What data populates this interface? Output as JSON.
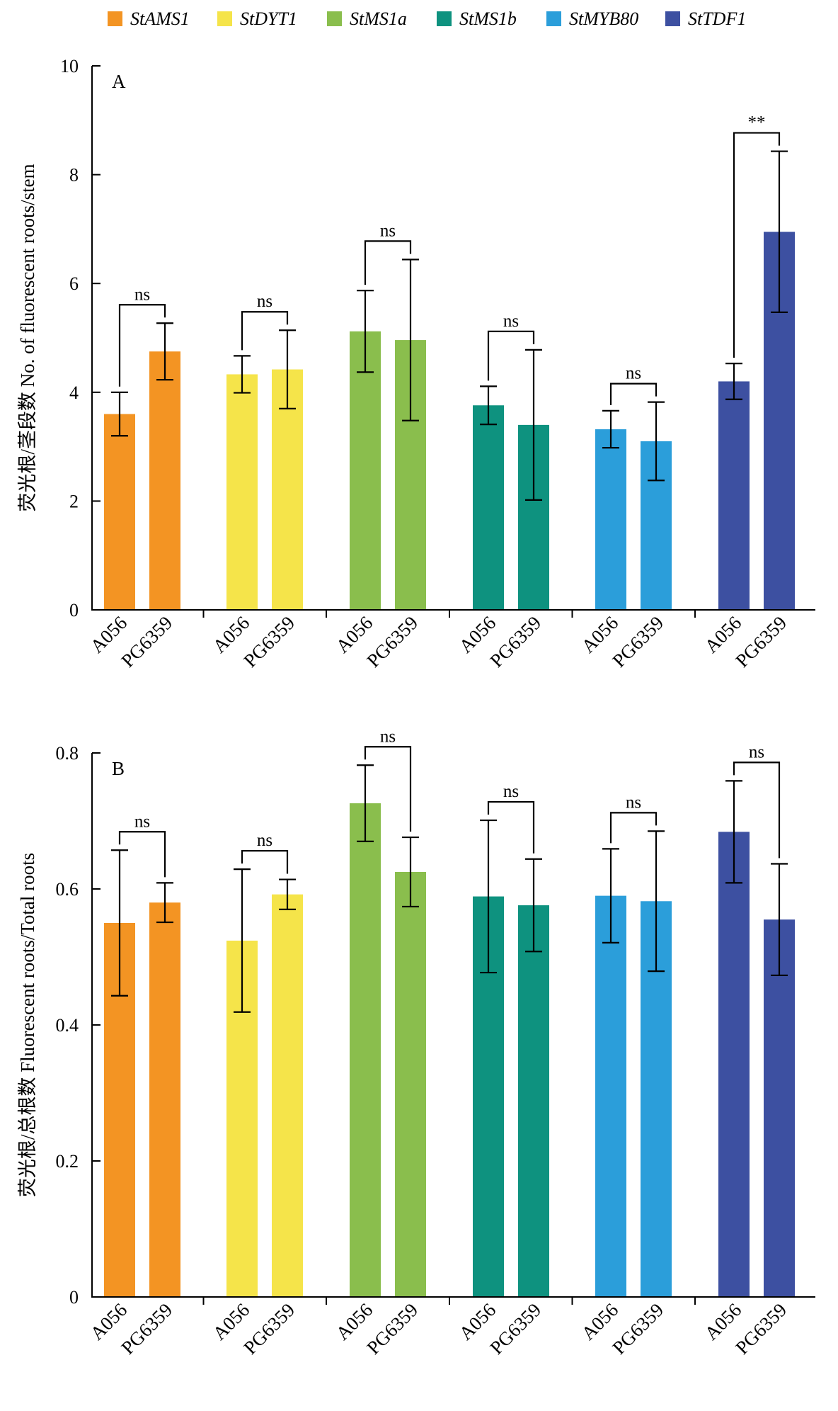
{
  "legend": [
    {
      "name": "StAMS1",
      "color": "#F39423"
    },
    {
      "name": "StDYT1",
      "color": "#F5E44A"
    },
    {
      "name": "StMS1a",
      "color": "#8ABE4D"
    },
    {
      "name": "StMS1b",
      "color": "#0E927F"
    },
    {
      "name": "StMYB80",
      "color": "#2B9EDA"
    },
    {
      "name": "StTDF1",
      "color": "#3D50A1"
    }
  ],
  "chart_data": [
    {
      "type": "bar",
      "panel": "A",
      "ylabel": "荧光根/茎段数 No. of fluorescent roots/stem",
      "ylim": [
        0,
        10
      ],
      "yticks": [
        0,
        2,
        4,
        6,
        8,
        10
      ],
      "ytick_labels": [
        "0",
        "2",
        "4",
        "6",
        "8",
        "10"
      ],
      "categories": [
        "A056",
        "PG6359"
      ],
      "series": [
        {
          "name": "StAMS1",
          "values": [
            3.6,
            4.75
          ],
          "errors": [
            0.4,
            0.52
          ],
          "significance": "ns"
        },
        {
          "name": "StDYT1",
          "values": [
            4.33,
            4.42
          ],
          "errors": [
            0.34,
            0.72
          ],
          "significance": "ns"
        },
        {
          "name": "StMS1a",
          "values": [
            5.12,
            4.96
          ],
          "errors": [
            0.75,
            1.48
          ],
          "significance": "ns"
        },
        {
          "name": "StMS1b",
          "values": [
            3.76,
            3.4
          ],
          "errors": [
            0.35,
            1.38
          ],
          "significance": "ns"
        },
        {
          "name": "StMYB80",
          "values": [
            3.32,
            3.1
          ],
          "errors": [
            0.34,
            0.72
          ],
          "significance": "ns"
        },
        {
          "name": "StTDF1",
          "values": [
            4.2,
            6.95
          ],
          "errors": [
            0.33,
            1.48
          ],
          "significance": "**"
        }
      ]
    },
    {
      "type": "bar",
      "panel": "B",
      "ylabel": "荧光根/总根数 Fluorescent roots/Total roots",
      "ylim": [
        0,
        0.8
      ],
      "yticks": [
        0,
        0.2,
        0.4,
        0.6,
        0.8
      ],
      "ytick_labels": [
        "0",
        "0.2",
        "0.4",
        "0.6",
        "0.8"
      ],
      "categories": [
        "A056",
        "PG6359"
      ],
      "series": [
        {
          "name": "StAMS1",
          "values": [
            0.55,
            0.58
          ],
          "errors": [
            0.107,
            0.029
          ],
          "significance": "ns"
        },
        {
          "name": "StDYT1",
          "values": [
            0.524,
            0.592
          ],
          "errors": [
            0.105,
            0.022
          ],
          "significance": "ns"
        },
        {
          "name": "StMS1a",
          "values": [
            0.726,
            0.625
          ],
          "errors": [
            0.056,
            0.051
          ],
          "significance": "ns"
        },
        {
          "name": "StMS1b",
          "values": [
            0.589,
            0.576
          ],
          "errors": [
            0.112,
            0.068
          ],
          "significance": "ns"
        },
        {
          "name": "StMYB80",
          "values": [
            0.59,
            0.582
          ],
          "errors": [
            0.069,
            0.103
          ],
          "significance": "ns"
        },
        {
          "name": "StTDF1",
          "values": [
            0.684,
            0.555
          ],
          "errors": [
            0.075,
            0.082
          ],
          "significance": "ns"
        }
      ]
    }
  ]
}
